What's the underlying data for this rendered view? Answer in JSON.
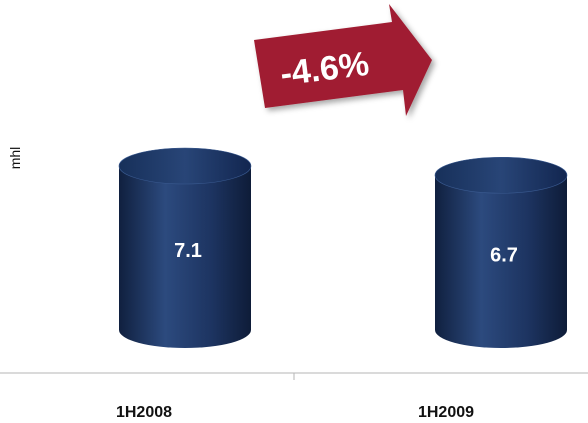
{
  "chart_data": {
    "type": "bar",
    "categories": [
      "1H2008",
      "1H2009"
    ],
    "values": [
      7.1,
      6.7
    ],
    "value_labels": [
      "7.1",
      "6.7"
    ],
    "ylabel": "mhl",
    "change_label": "-4.6%",
    "bar_style": "cylinder",
    "colors": {
      "bar": "#1d3461",
      "bar_dark": "#10203f",
      "bar_light": "#2c4a7e",
      "arrow": "#a01c30",
      "axis": "#b5b5b5"
    }
  }
}
